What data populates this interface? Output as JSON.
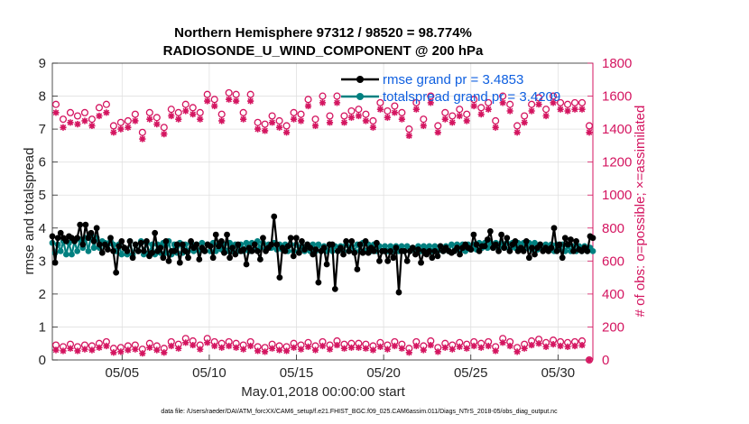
{
  "chart_data": {
    "type": "line",
    "title_line1": "Northern Hemisphere 97312 / 98520 = 98.774%",
    "title_line2": "RADIOSONDE_U_WIND_COMPONENT @ 200 hPa",
    "xlabel": "May.01,2018 00:00:00 start",
    "ylabel_left": "rmse and totalspread",
    "ylabel_right": "# of obs: o=possible; ×=assimilated",
    "footnote": "data file: /Users/raeder/DAI/ATM_forcXX/CAM6_setup/f.e21.FHIST_BGC.f09_025.CAM6assim.011/Diags_NTrS_2018-05/obs_diag_output.nc",
    "xlim": [
      1.0,
      32.0
    ],
    "x_ticks": [
      5,
      10,
      15,
      20,
      25,
      30
    ],
    "x_tick_labels": [
      "05/05",
      "05/10",
      "05/15",
      "05/20",
      "05/25",
      "05/30"
    ],
    "ylim_left": [
      0,
      9
    ],
    "y_ticks_left": [
      "0",
      "1",
      "2",
      "3",
      "4",
      "5",
      "6",
      "7",
      "8",
      "9"
    ],
    "ylim_right": [
      0,
      1800
    ],
    "y_ticks_right": [
      "0",
      "200",
      "400",
      "600",
      "800",
      "1000",
      "1200",
      "1400",
      "1600",
      "1800"
    ],
    "grid": true,
    "legend": [
      {
        "label": "rmse grand pr = 3.4853",
        "color": "#000000"
      },
      {
        "label": "totalspread grand pr = 3.4209",
        "color": "#008080"
      }
    ],
    "colors": {
      "rmse": "#000000",
      "spread": "#008080",
      "obs": "#d41560",
      "legend_text": "#1060e0"
    },
    "rmse": [
      3.75,
      2.95,
      3.7,
      3.85,
      3.7,
      3.6,
      3.75,
      3.7,
      3.6,
      3.7,
      4.1,
      3.5,
      4.1,
      3.7,
      3.85,
      3.6,
      4.0,
      3.5,
      3.25,
      3.5,
      3.35,
      3.7,
      3.3,
      2.65,
      3.45,
      3.6,
      3.4,
      3.3,
      3.6,
      3.1,
      3.5,
      3.3,
      3.55,
      3.3,
      3.6,
      3.15,
      3.25,
      3.85,
      3.3,
      3.4,
      3.1,
      3.6,
      3.0,
      3.3,
      3.3,
      3.5,
      2.95,
      3.5,
      3.3,
      3.1,
      3.6,
      3.4,
      3.5,
      3.05,
      3.4,
      3.3,
      3.5,
      3.45,
      3.1,
      3.8,
      3.45,
      3.6,
      3.25,
      3.8,
      3.1,
      3.4,
      3.2,
      3.5,
      3.3,
      3.35,
      2.9,
      3.4,
      3.3,
      3.5,
      3.3,
      3.05,
      3.7,
      3.3,
      3.4,
      3.5,
      4.35,
      3.5,
      2.5,
      3.4,
      3.3,
      3.45,
      3.7,
      3.15,
      3.7,
      3.25,
      3.6,
      3.35,
      3.5,
      3.4,
      3.2,
      3.35,
      2.35,
      3.3,
      3.4,
      2.9,
      3.5,
      3.5,
      2.15,
      3.3,
      3.4,
      3.2,
      3.6,
      3.3,
      3.6,
      3.25,
      2.75,
      3.5,
      3.25,
      3.6,
      3.25,
      3.4,
      3.3,
      3.55,
      3.0,
      3.3,
      3.3,
      3.0,
      3.3,
      3.1,
      3.4,
      2.05,
      3.3,
      3.3,
      3.0,
      3.3,
      3.4,
      3.2,
      3.35,
      2.95,
      3.3,
      3.2,
      3.3,
      3.1,
      3.3,
      3.15,
      3.45,
      3.3,
      3.4,
      3.3,
      3.25,
      3.3,
      3.4,
      3.2,
      3.4,
      3.5,
      3.4,
      3.35,
      3.8,
      3.5,
      3.3,
      3.45,
      3.45,
      3.65,
      3.9,
      3.4,
      3.5,
      3.3,
      3.8,
      3.4,
      3.7,
      3.3,
      3.5,
      3.6,
      3.3,
      3.4,
      3.3,
      3.6,
      3.1,
      3.4,
      3.2,
      3.4,
      3.5,
      3.3,
      3.4,
      3.3,
      3.4,
      4.0,
      3.3,
      3.5,
      3.1,
      3.7,
      3.5,
      3.65,
      3.3,
      3.6,
      3.35,
      3.3,
      3.4,
      3.3,
      3.75,
      3.7
    ],
    "spread": [
      3.55,
      3.25,
      3.5,
      3.3,
      3.6,
      3.2,
      3.55,
      3.2,
      3.6,
      3.3,
      3.65,
      3.4,
      3.7,
      3.3,
      3.8,
      3.4,
      3.7,
      3.4,
      3.6,
      3.55,
      3.5,
      3.6,
      3.5,
      3.3,
      3.5,
      3.2,
      3.4,
      3.2,
      3.6,
      3.2,
      3.5,
      3.3,
      3.6,
      3.2,
      3.55,
      3.25,
      3.5,
      3.2,
      3.5,
      3.25,
      3.55,
      3.25,
      3.6,
      3.2,
      3.5,
      3.25,
      3.55,
      3.25,
      3.5,
      3.3,
      3.55,
      3.3,
      3.5,
      3.3,
      3.55,
      3.3,
      3.5,
      3.3,
      3.55,
      3.3,
      3.5,
      3.35,
      3.5,
      3.3,
      3.55,
      3.3,
      3.5,
      3.3,
      3.5,
      3.3,
      3.55,
      3.3,
      3.55,
      3.35,
      3.6,
      3.4,
      3.55,
      3.35,
      3.5,
      3.4,
      3.55,
      3.35,
      3.5,
      3.35,
      3.5,
      3.3,
      3.5,
      3.3,
      3.5,
      3.3,
      3.45,
      3.3,
      3.5,
      3.3,
      3.5,
      3.3,
      3.5,
      3.3,
      3.45,
      3.3,
      3.5,
      3.3,
      3.45,
      3.3,
      3.45,
      3.3,
      3.5,
      3.3,
      3.45,
      3.3,
      3.5,
      3.3,
      3.55,
      3.3,
      3.5,
      3.3,
      3.5,
      3.3,
      3.45,
      3.3,
      3.45,
      3.3,
      3.45,
      3.3,
      3.45,
      3.3,
      3.45,
      3.3,
      3.45,
      3.3,
      3.4,
      3.3,
      3.45,
      3.3,
      3.45,
      3.35,
      3.45,
      3.3,
      3.45,
      3.3,
      3.45,
      3.3,
      3.45,
      3.3,
      3.5,
      3.3,
      3.5,
      3.3,
      3.5,
      3.3,
      3.5,
      3.35,
      3.5,
      3.35,
      3.55,
      3.4,
      3.55,
      3.4,
      3.55,
      3.4,
      3.55,
      3.4,
      3.55,
      3.4,
      3.55,
      3.35,
      3.55,
      3.4,
      3.55,
      3.35,
      3.55,
      3.4,
      3.55,
      3.35,
      3.55,
      3.35,
      3.5,
      3.35,
      3.5,
      3.35,
      3.5,
      3.3,
      3.5,
      3.35,
      3.5,
      3.3,
      3.45,
      3.3,
      3.45,
      3.3,
      3.45,
      3.3,
      3.45,
      3.3,
      3.4,
      3.3
    ],
    "obs_possible_high": [
      1550,
      1460,
      1500,
      1480,
      1500,
      1460,
      1530,
      1550,
      1420,
      1440,
      1450,
      1490,
      1380,
      1500,
      1470,
      1410,
      1520,
      1500,
      1550,
      1530,
      1500,
      1610,
      1580,
      1490,
      1620,
      1610,
      1500,
      1610,
      1440,
      1430,
      1480,
      1450,
      1420,
      1500,
      1490,
      1580,
      1460,
      1600,
      1480,
      1600,
      1480,
      1510,
      1520,
      1490,
      1450,
      1560,
      1510,
      1540,
      1500,
      1400,
      1560,
      1460,
      1600,
      1420,
      1500,
      1480,
      1520,
      1490,
      1580,
      1530,
      1560,
      1450,
      1600,
      1550,
      1420,
      1480,
      1550,
      1590,
      1520,
      1600,
      1560,
      1550,
      1560,
      1560,
      1420
    ],
    "obs_assim_high": [
      1500,
      1410,
      1440,
      1430,
      1450,
      1420,
      1480,
      1500,
      1380,
      1400,
      1410,
      1450,
      1340,
      1460,
      1430,
      1370,
      1480,
      1460,
      1510,
      1490,
      1460,
      1570,
      1540,
      1450,
      1580,
      1570,
      1460,
      1570,
      1400,
      1390,
      1440,
      1410,
      1380,
      1460,
      1450,
      1540,
      1420,
      1560,
      1440,
      1560,
      1440,
      1470,
      1480,
      1450,
      1410,
      1520,
      1470,
      1500,
      1460,
      1360,
      1520,
      1420,
      1560,
      1380,
      1460,
      1440,
      1480,
      1450,
      1540,
      1490,
      1520,
      1410,
      1560,
      1510,
      1380,
      1440,
      1510,
      1550,
      1480,
      1560,
      1520,
      1510,
      1520,
      1520,
      1380
    ],
    "obs_possible_low": [
      90,
      80,
      95,
      80,
      90,
      85,
      100,
      110,
      70,
      75,
      85,
      90,
      65,
      100,
      85,
      70,
      110,
      95,
      130,
      115,
      90,
      130,
      110,
      100,
      110,
      100,
      90,
      110,
      80,
      75,
      95,
      85,
      80,
      100,
      90,
      105,
      85,
      110,
      90,
      115,
      95,
      100,
      100,
      95,
      85,
      105,
      90,
      110,
      95,
      70,
      110,
      85,
      115,
      75,
      100,
      90,
      105,
      95,
      110,
      100,
      110,
      80,
      130,
      110,
      75,
      95,
      115,
      125,
      105,
      120,
      110,
      105,
      110,
      115,
      0
    ],
    "obs_assim_low": [
      60,
      55,
      70,
      55,
      65,
      60,
      75,
      85,
      45,
      50,
      60,
      65,
      40,
      75,
      60,
      45,
      85,
      70,
      105,
      90,
      65,
      105,
      85,
      75,
      85,
      75,
      65,
      85,
      55,
      50,
      70,
      60,
      55,
      75,
      65,
      80,
      60,
      85,
      65,
      90,
      70,
      75,
      75,
      70,
      60,
      80,
      65,
      85,
      70,
      45,
      85,
      60,
      90,
      50,
      75,
      65,
      80,
      70,
      85,
      75,
      85,
      55,
      105,
      85,
      50,
      70,
      90,
      100,
      80,
      95,
      85,
      80,
      85,
      90,
      0
    ]
  }
}
